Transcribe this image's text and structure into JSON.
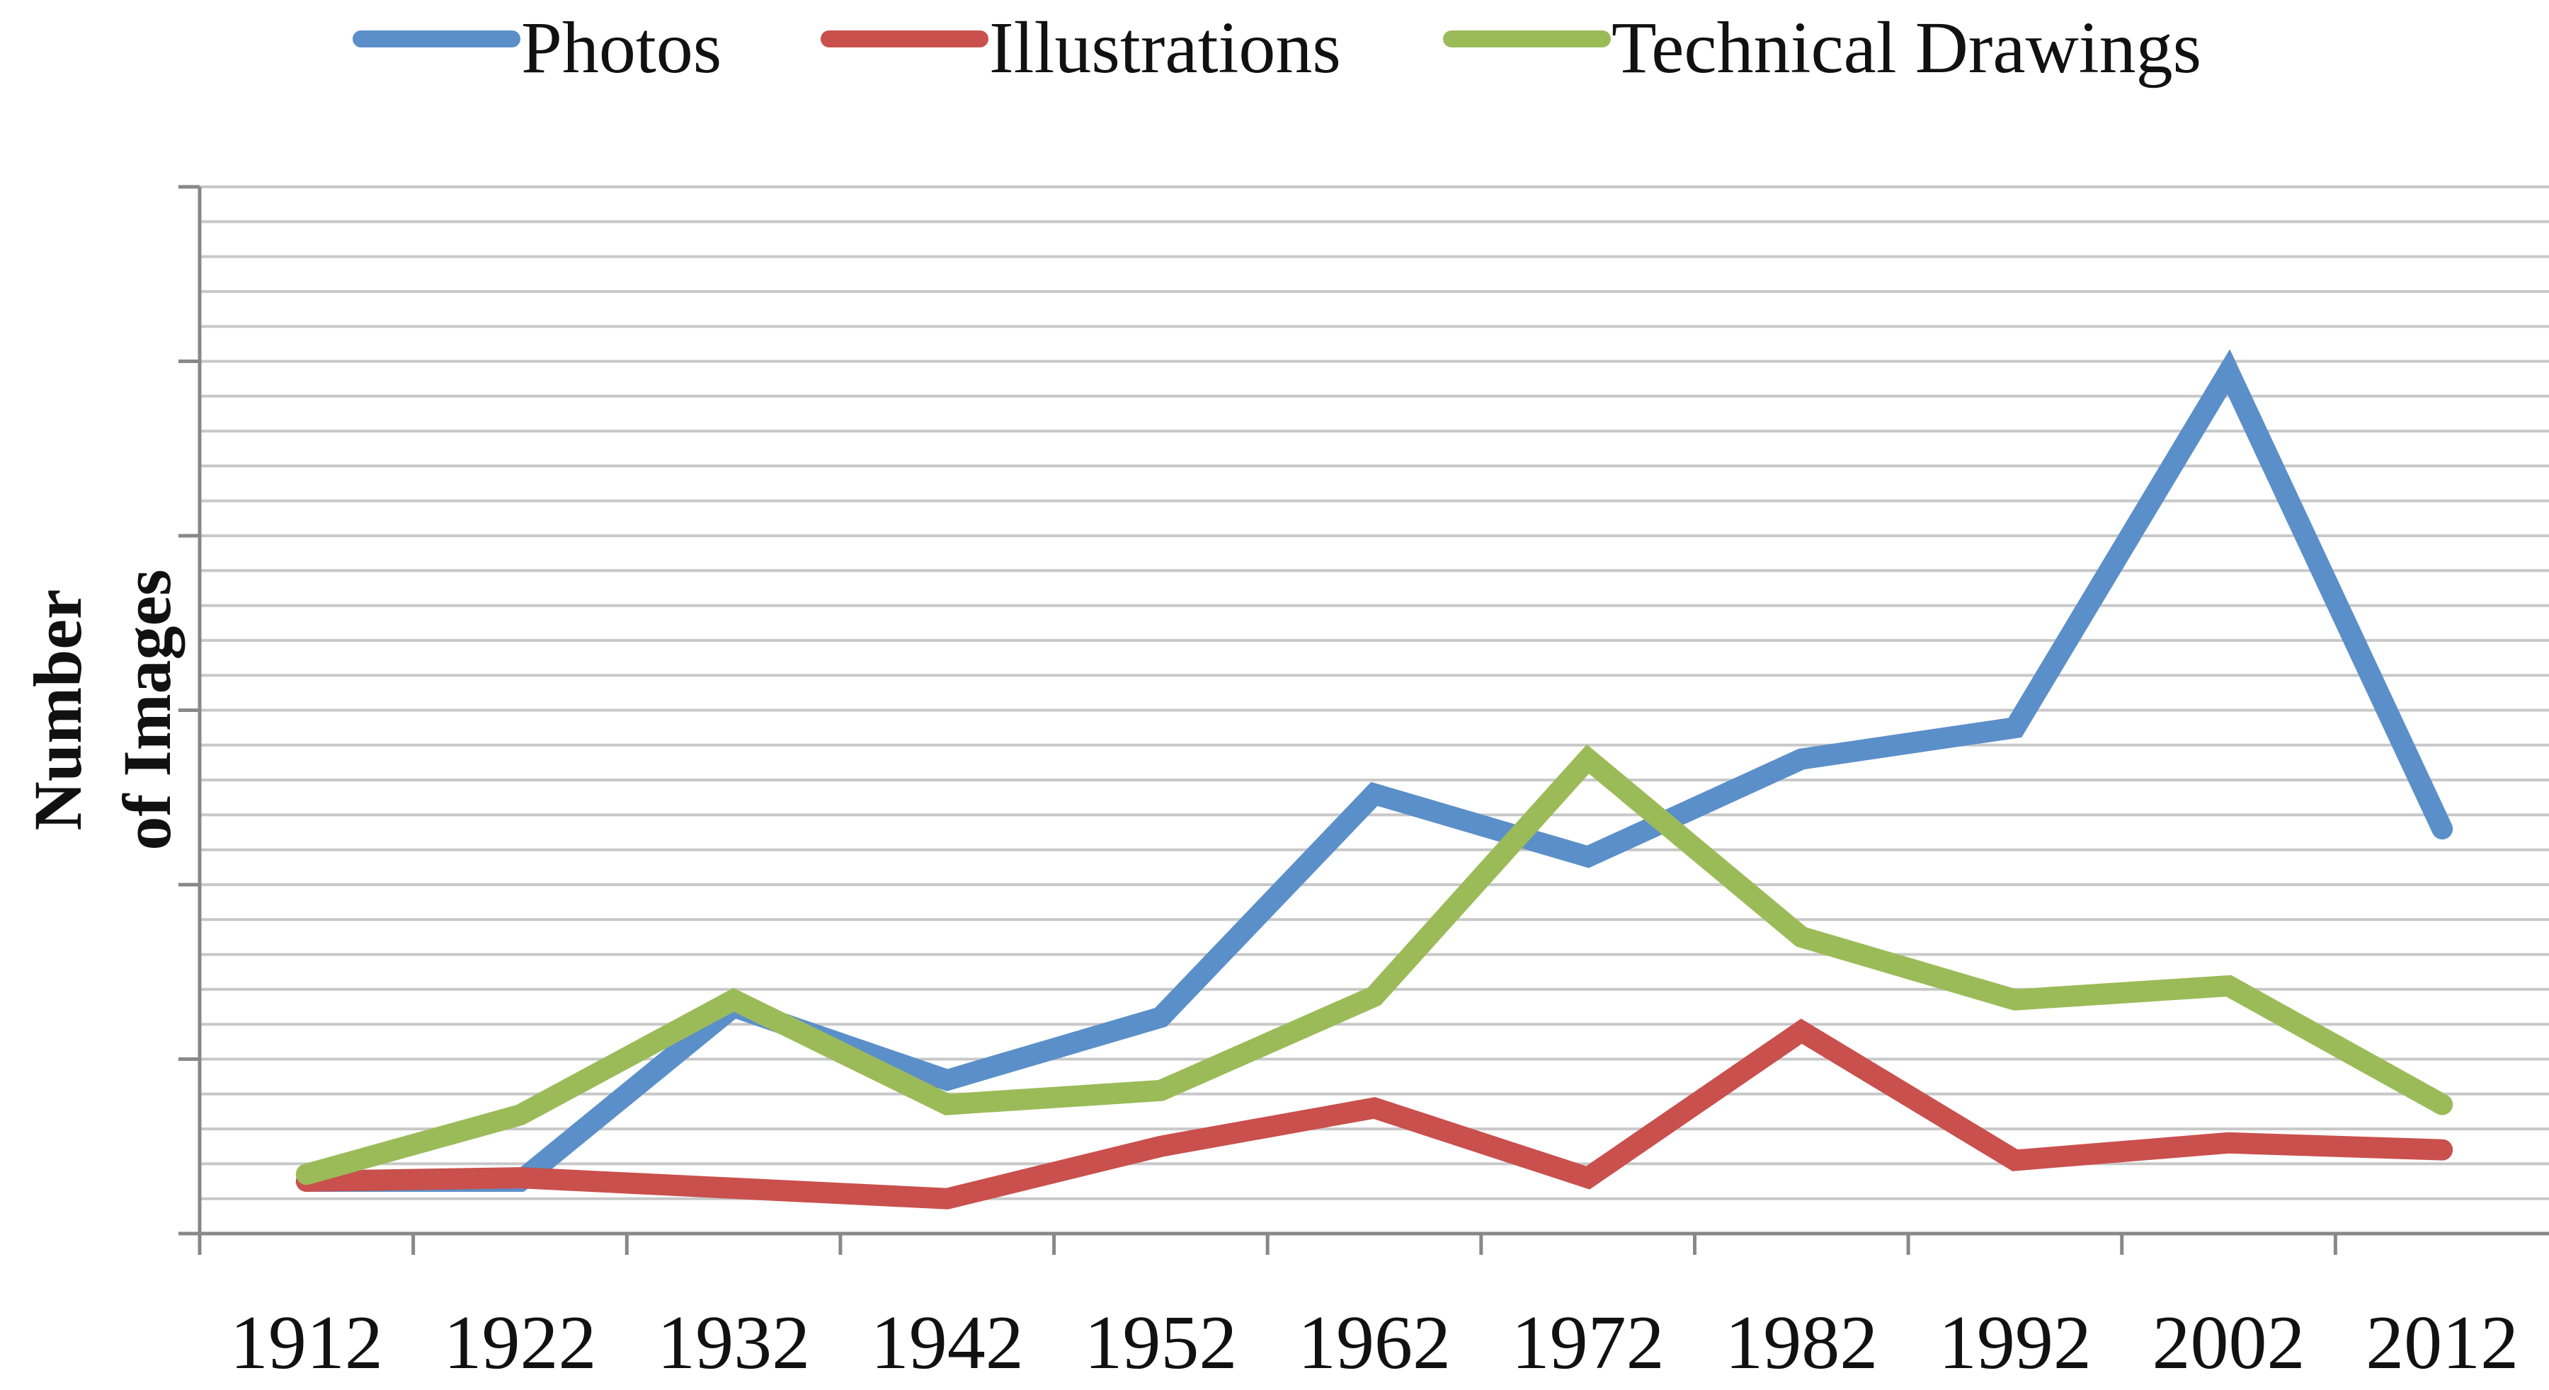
{
  "chart_data": {
    "type": "line",
    "y_label": [
      "Number",
      "of Images"
    ],
    "categories": [
      "1912",
      "1922",
      "1932",
      "1942",
      "1952",
      "1962",
      "1972",
      "1982",
      "1992",
      "2002",
      "2012"
    ],
    "series": [
      {
        "name": "Photos",
        "color": "#5b8fc9",
        "values": [
          1.5,
          1.5,
          6.5,
          4.4,
          6.2,
          12.6,
          10.8,
          13.6,
          14.5,
          24.7,
          11.6
        ]
      },
      {
        "name": "Illustrations",
        "color": "#c9504d",
        "values": [
          1.5,
          1.6,
          1.3,
          1.0,
          2.5,
          3.6,
          1.6,
          5.8,
          2.1,
          2.6,
          2.4
        ]
      },
      {
        "name": "Technical Drawings",
        "color": "#9bbb59",
        "values": [
          1.7,
          3.4,
          6.7,
          3.7,
          4.1,
          6.8,
          13.6,
          8.5,
          6.7,
          7.1,
          3.7
        ]
      }
    ],
    "ylim": [
      0,
      30
    ],
    "yticks": [
      0,
      5,
      10,
      15,
      20,
      25,
      30
    ],
    "minor_yticks": [
      1,
      2,
      3,
      4,
      6,
      7,
      8,
      9,
      11,
      12,
      13,
      14,
      16,
      17,
      18,
      19,
      21,
      22,
      23,
      24,
      26,
      27,
      28,
      29
    ],
    "grid": true,
    "legend": "top"
  }
}
